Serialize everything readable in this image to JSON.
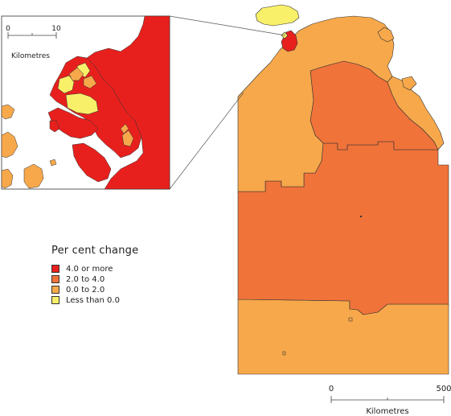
{
  "legend": {
    "title": "Per cent change",
    "items": [
      {
        "label": "4.0 or more",
        "color": "#e8201d"
      },
      {
        "label": "2.0 to 4.0",
        "color": "#f0733a"
      },
      {
        "label": "0.0 to 2.0",
        "color": "#f7a84b"
      },
      {
        "label": "Less than 0.0",
        "color": "#f9f06a"
      }
    ]
  },
  "main_scale": {
    "min_label": "0",
    "max_label": "500",
    "unit": "Kilometres"
  },
  "inset_scale": {
    "min_label": "0",
    "max_label": "10",
    "unit": "Kilometres"
  },
  "colors": {
    "border": "#333333",
    "water": "#ffffff"
  }
}
